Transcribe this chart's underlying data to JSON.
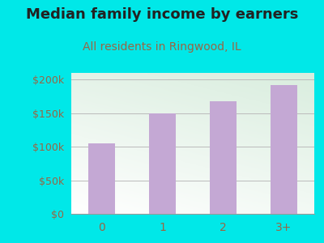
{
  "title": "Median family income by earners",
  "subtitle": "All residents in Ringwood, IL",
  "categories": [
    "0",
    "1",
    "2",
    "3+"
  ],
  "values": [
    105000,
    150000,
    168000,
    192000
  ],
  "bar_color": "#c4a8d4",
  "outer_bg": "#00e8e8",
  "plot_bg_colors": [
    "#ffffff",
    "#d8eedd"
  ],
  "title_color": "#222222",
  "subtitle_color": "#996644",
  "tick_color": "#996644",
  "grid_color": "#bbbbbb",
  "ylim": [
    0,
    210000
  ],
  "yticks": [
    0,
    50000,
    100000,
    150000,
    200000
  ],
  "ytick_labels": [
    "$0",
    "$50k",
    "$100k",
    "$150k",
    "$200k"
  ],
  "title_fontsize": 13,
  "subtitle_fontsize": 10,
  "xtick_fontsize": 10,
  "ytick_fontsize": 9
}
